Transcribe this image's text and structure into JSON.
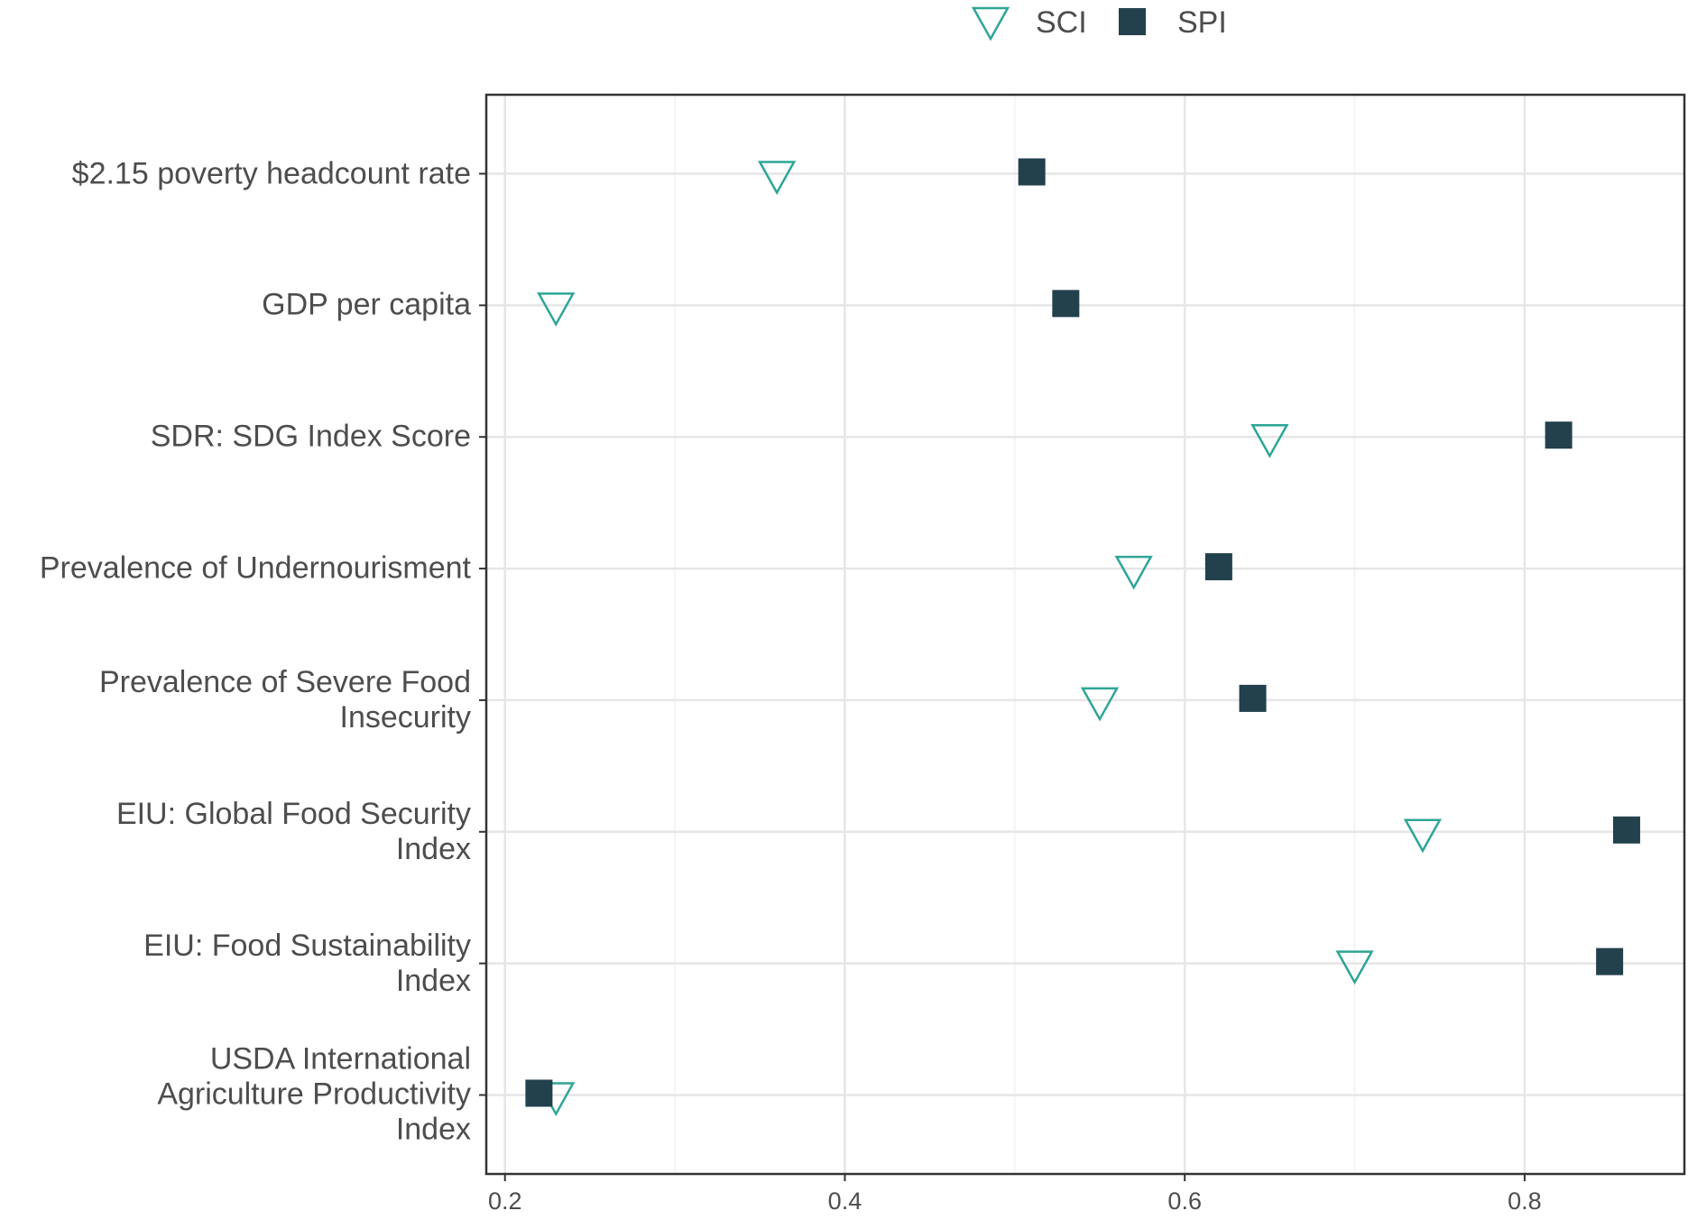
{
  "chart_data": {
    "type": "dot",
    "categories": [
      "$2.15 poverty headcount rate",
      "GDP per capita",
      "SDR: SDG Index Score",
      "Prevalence of Undernourisment",
      "Prevalence of Severe Food\nInsecurity",
      "EIU: Global Food Security\nIndex",
      "EIU: Food Sustainability\nIndex",
      "USDA International\nAgriculture Productivity\nIndex"
    ],
    "series": [
      {
        "name": "SCI",
        "color": "#2ea596",
        "marker": "triangle-down-open",
        "values": [
          0.36,
          0.23,
          0.65,
          0.57,
          0.55,
          0.74,
          0.7,
          0.23
        ]
      },
      {
        "name": "SPI",
        "color": "#23404d",
        "marker": "square",
        "values": [
          0.51,
          0.53,
          0.82,
          0.62,
          0.64,
          0.86,
          0.85,
          0.22
        ]
      }
    ],
    "xlim": [
      0.189,
      0.894
    ],
    "xticks": [
      0.2,
      0.4,
      0.6,
      0.8
    ],
    "minor_xticks": [
      0.3,
      0.5,
      0.7
    ],
    "grid": true,
    "legend": "top"
  }
}
